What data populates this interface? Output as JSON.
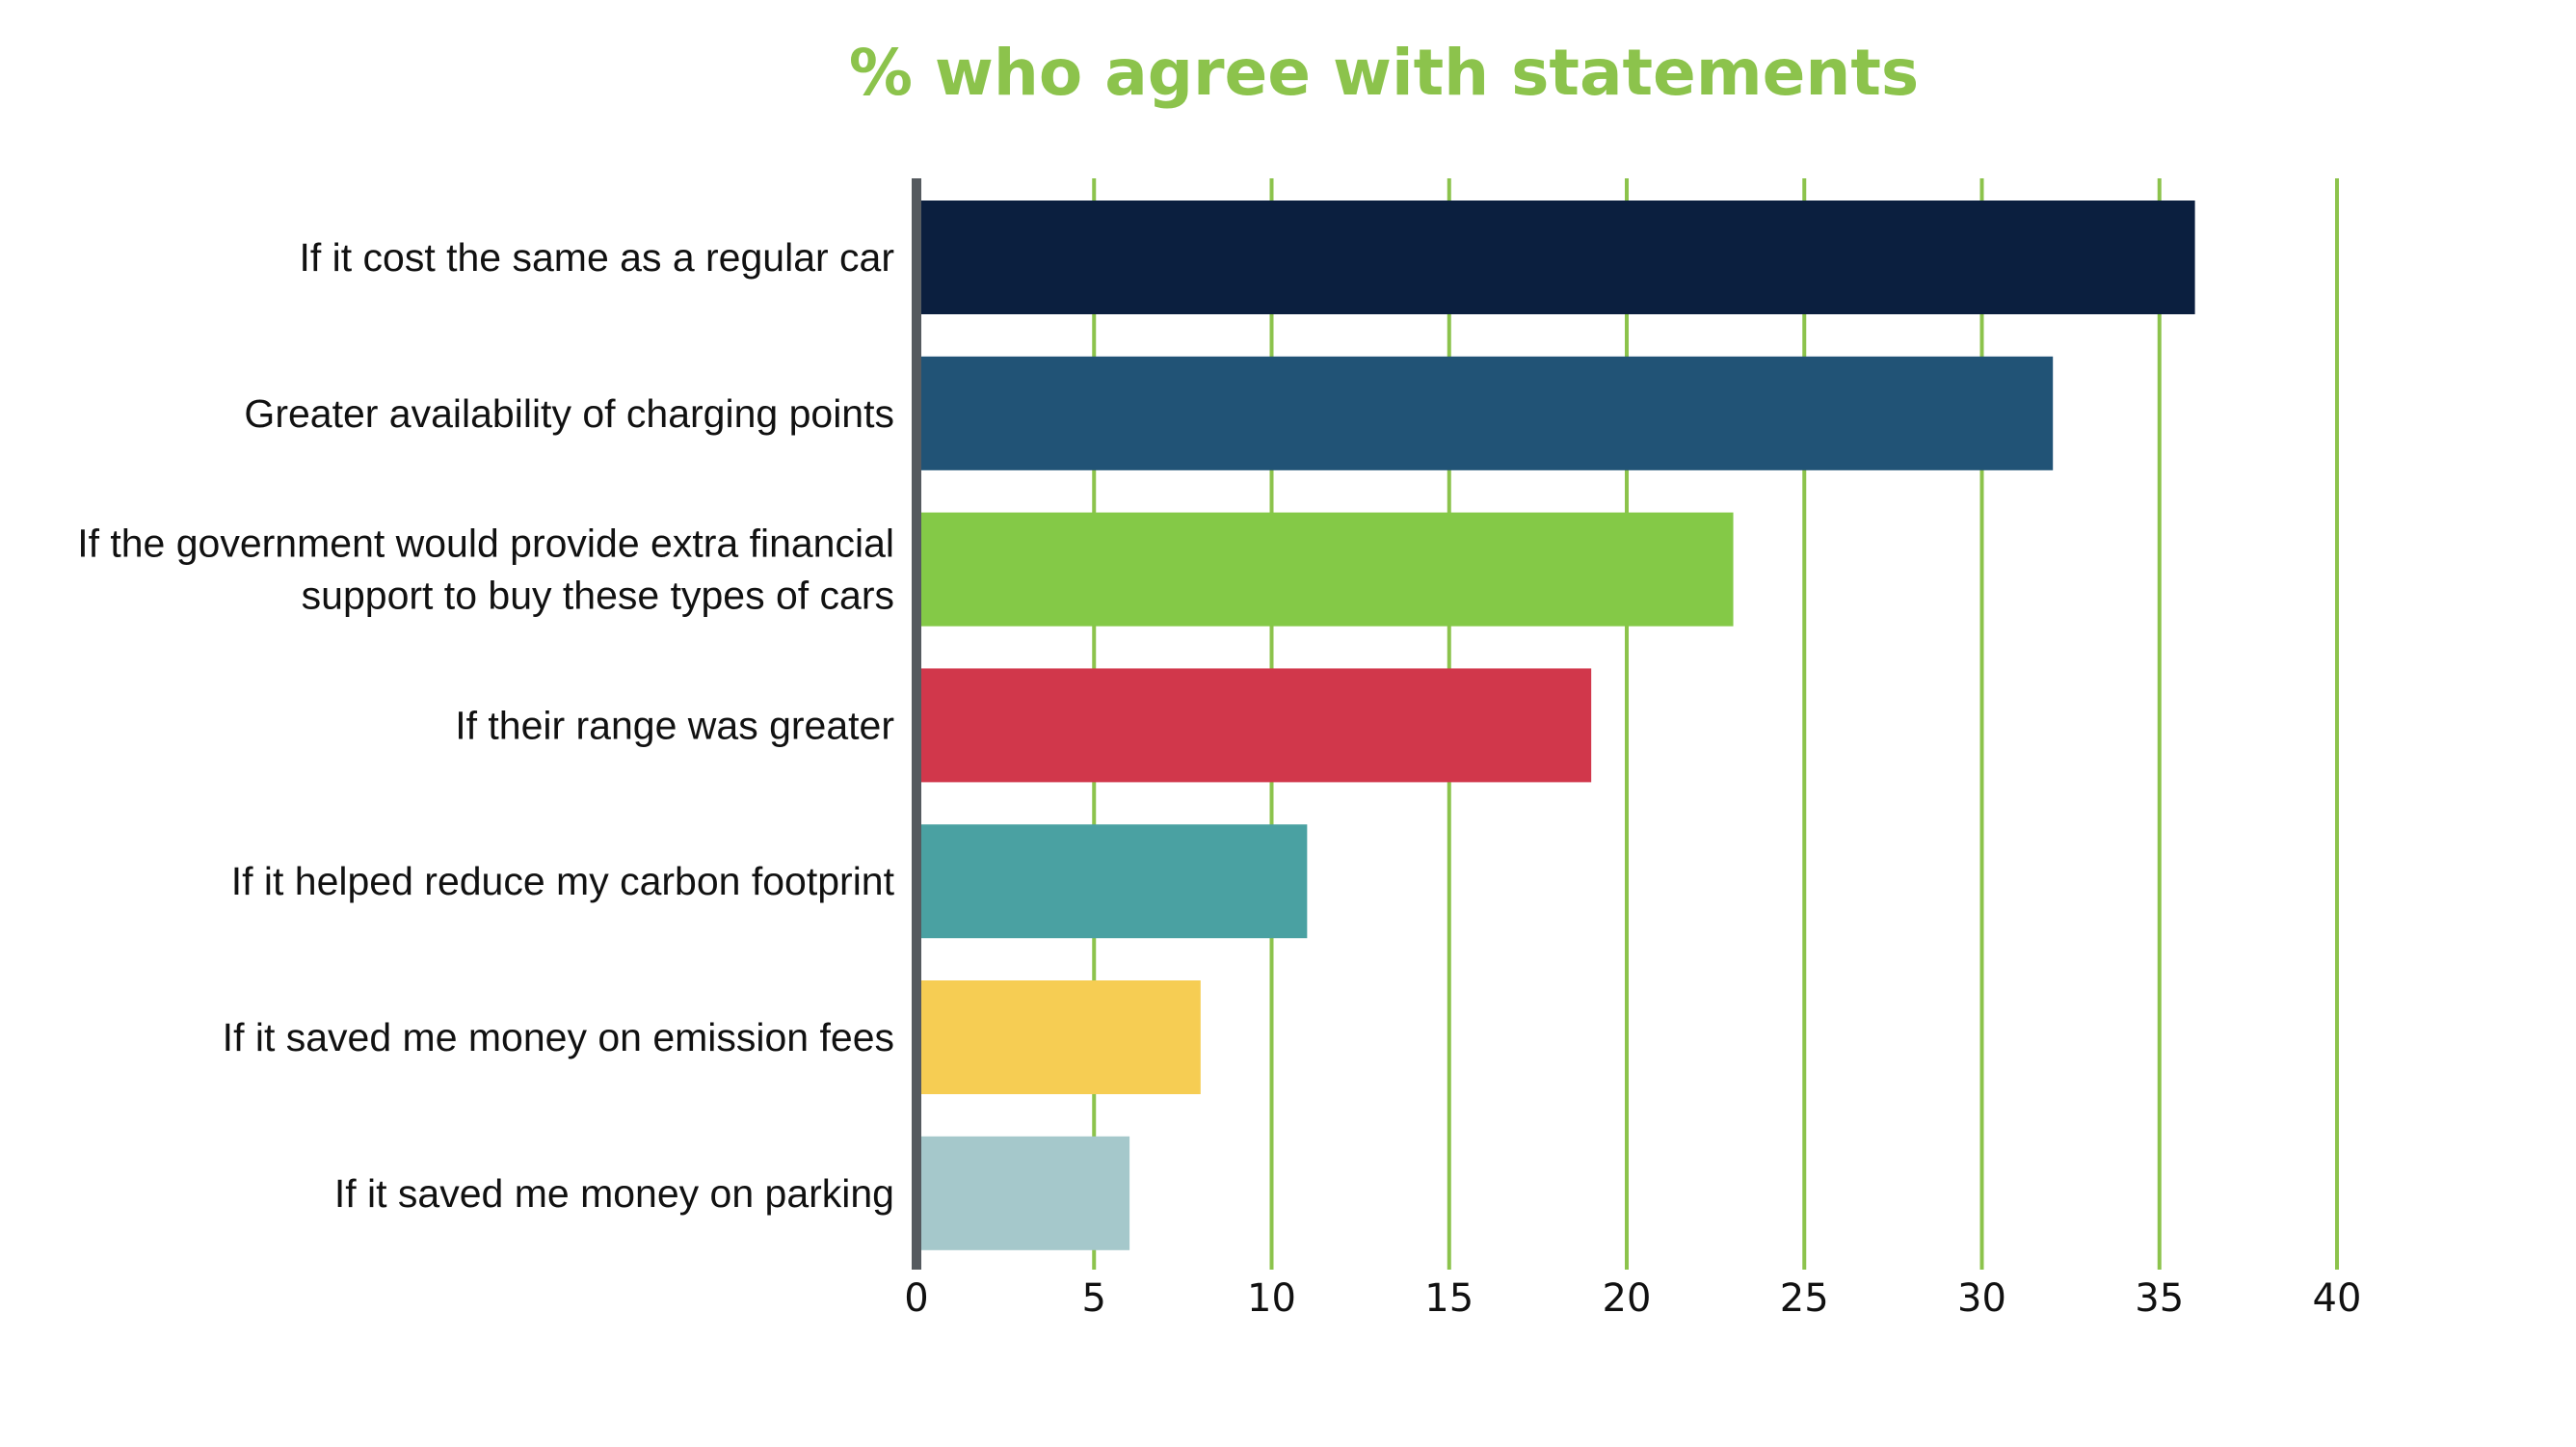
{
  "chart_data": {
    "type": "bar",
    "orientation": "horizontal",
    "title": "% who agree with statements",
    "xlabel": "",
    "ylabel": "",
    "xlim": [
      0,
      40
    ],
    "xticks": [
      0,
      5,
      10,
      15,
      20,
      25,
      30,
      35,
      40
    ],
    "grid": true,
    "categories": [
      [
        "If it cost the same as a regular car"
      ],
      [
        "Greater availability of charging points"
      ],
      [
        "If the government would provide extra financial",
        "support to buy these types of cars"
      ],
      [
        "If their range was greater"
      ],
      [
        "If it helped reduce my carbon footprint"
      ],
      [
        "If it saved me money on emission fees"
      ],
      [
        "If it saved me money on parking"
      ]
    ],
    "values": [
      36,
      32,
      23,
      19,
      11,
      8,
      6
    ],
    "colors": [
      "#0b1f3f",
      "#215376",
      "#84c947",
      "#d1374b",
      "#4aa1a2",
      "#f6cd53",
      "#a5c8cb"
    ],
    "title_color": "#8cc34c",
    "grid_color": "#8cc34c",
    "axis_color": "#555a5f"
  }
}
